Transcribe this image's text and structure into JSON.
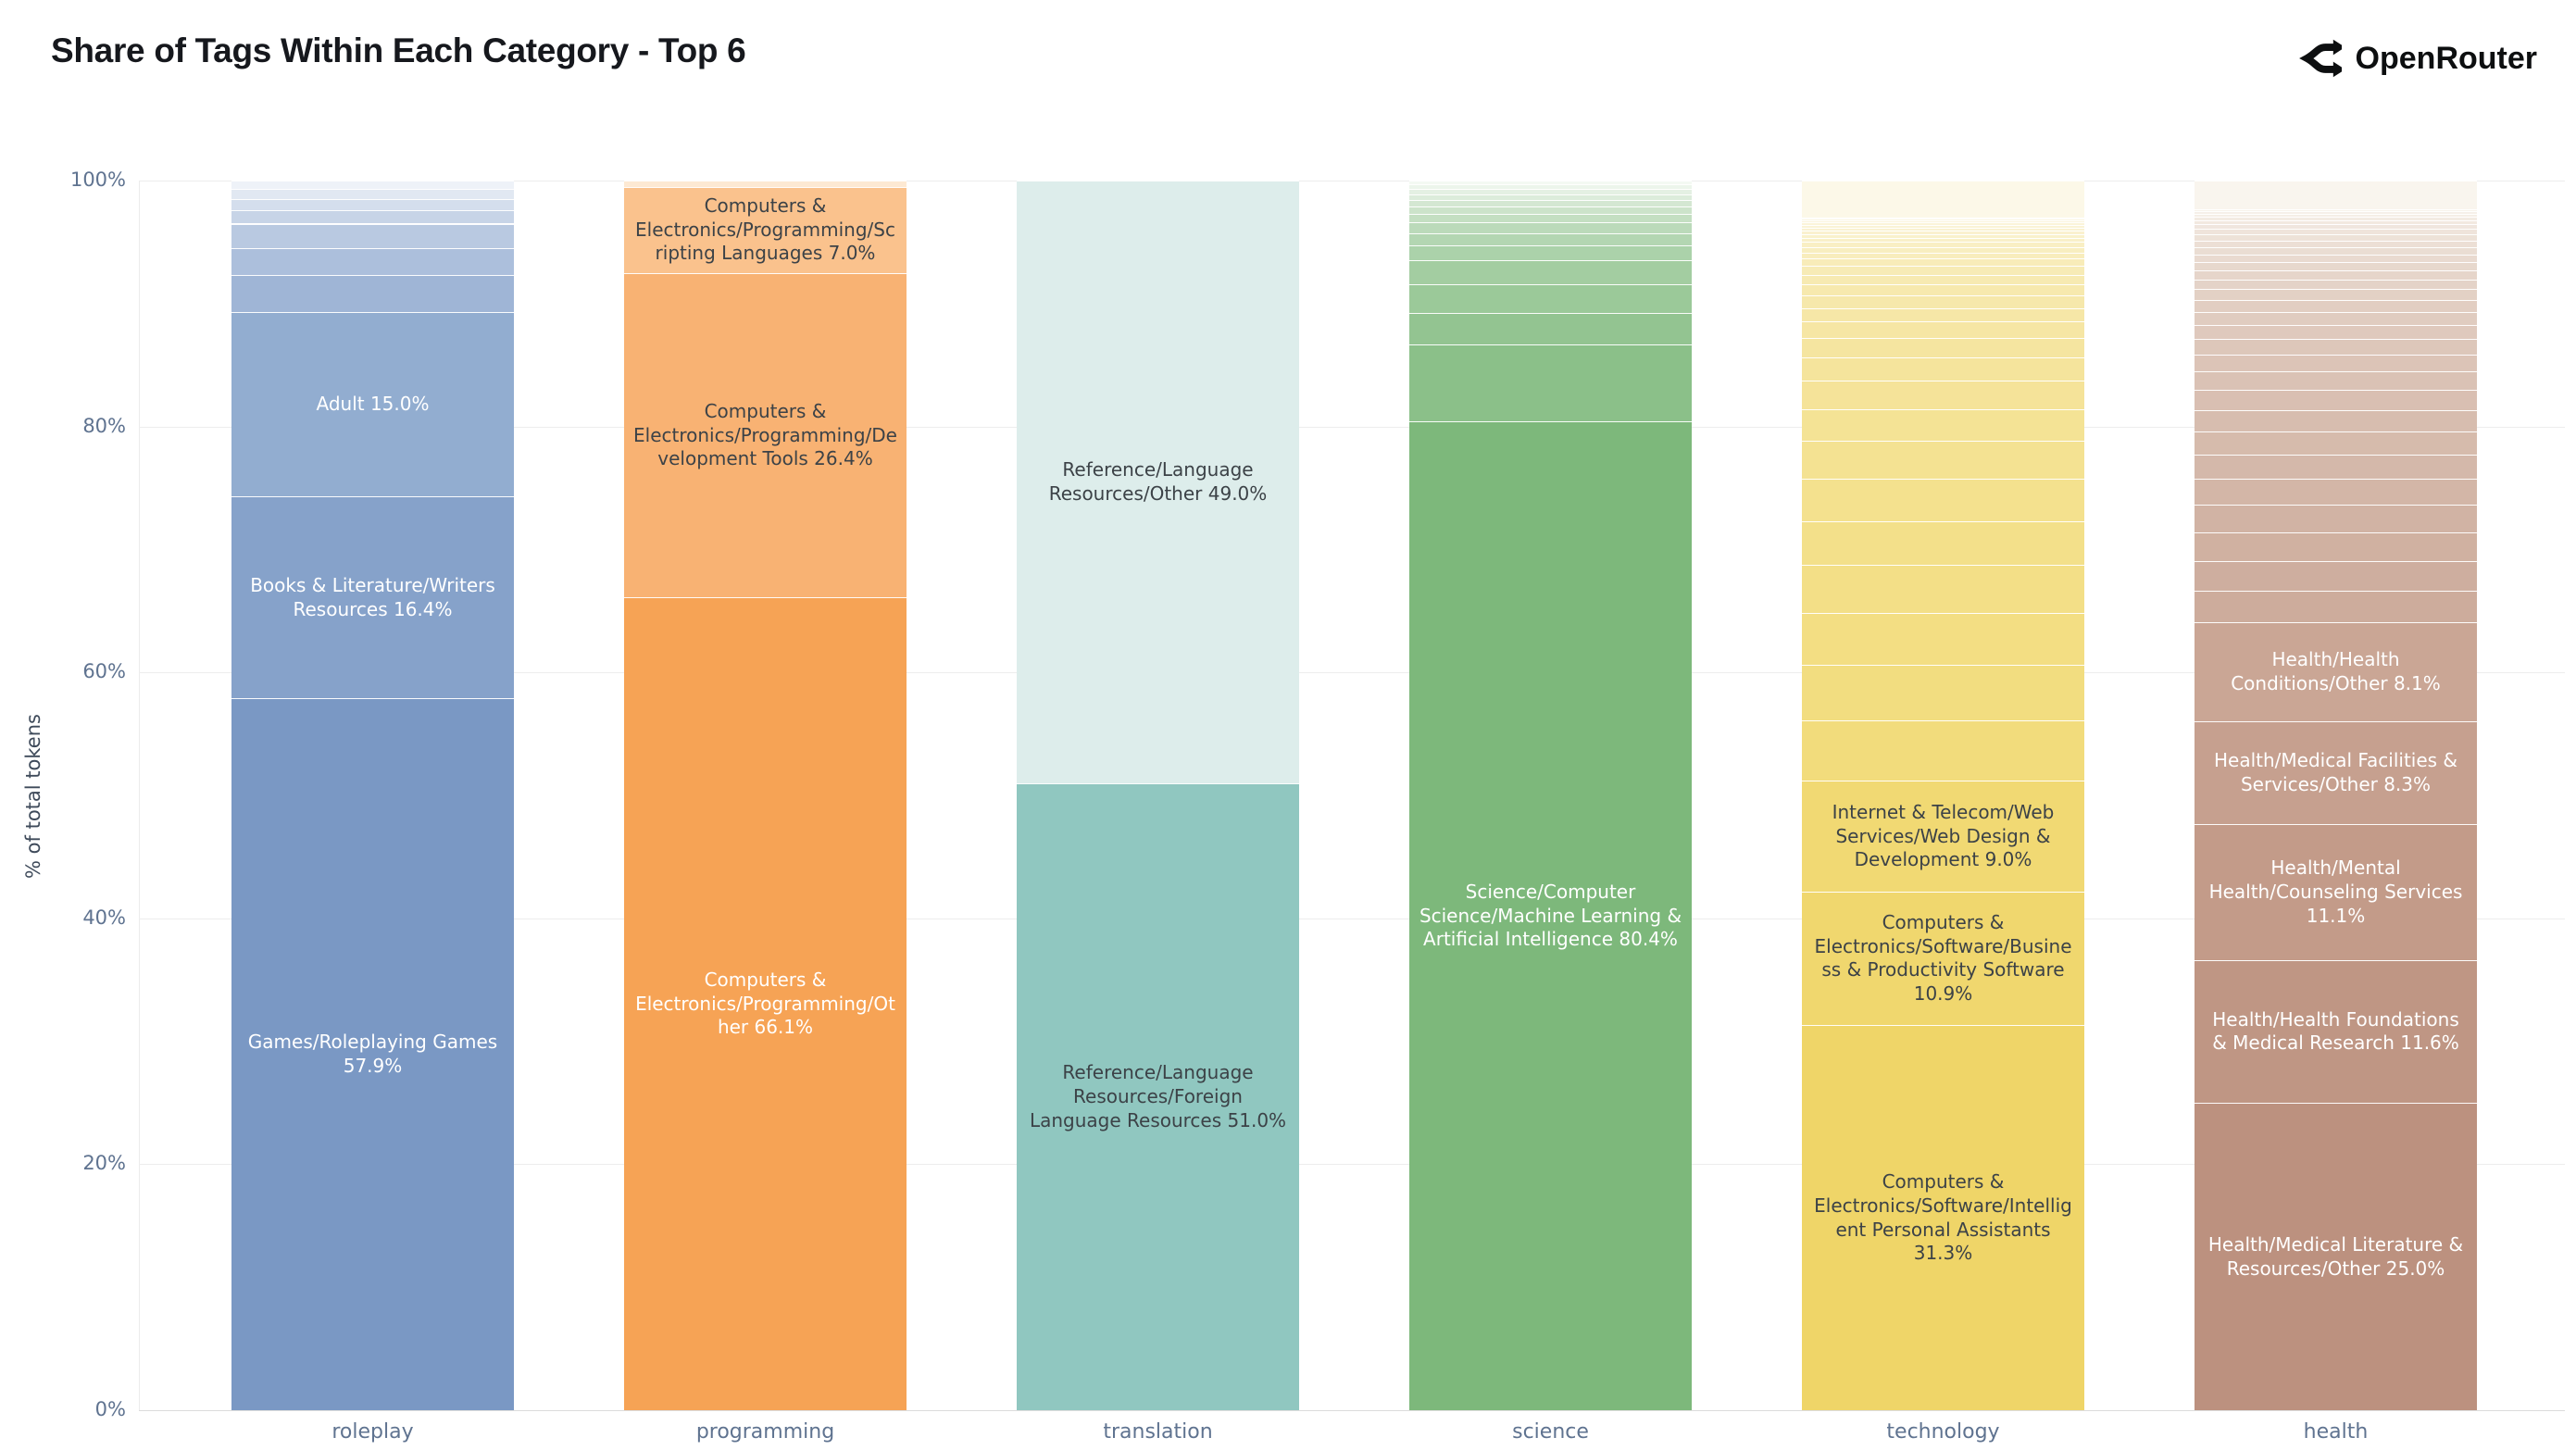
{
  "header": {
    "title": "Share of Tags Within Each Category - Top 6",
    "brand": "OpenRouter",
    "brand_icon": "openrouter-logo-icon",
    "brand_color": "#0d0f10"
  },
  "chart_data": {
    "type": "bar",
    "subtype": "stacked-100-percent",
    "title": "Share of Tags Within Each Category - Top 6",
    "xlabel": "",
    "ylabel": "% of total tokens",
    "ylim": [
      0,
      100
    ],
    "yticks": [
      "0%",
      "20%",
      "40%",
      "60%",
      "80%",
      "100%"
    ],
    "grid": true,
    "legend": "none",
    "label_text_dark": "#3c4247",
    "label_text_light": "#ffffff",
    "categories": [
      "roleplay",
      "programming",
      "translation",
      "science",
      "technology",
      "health"
    ],
    "bars": [
      {
        "category": "roleplay",
        "segments": [
          {
            "label": "Games/Roleplaying Games",
            "pct": 57.9,
            "color": "#7a98c4",
            "text": "light"
          },
          {
            "label": "Books & Literature/Writers Resources",
            "pct": 16.4,
            "color": "#86a2ca",
            "text": "light"
          },
          {
            "label": "Adult",
            "pct": 15.0,
            "color": "#92add0",
            "text": "light"
          }
        ],
        "other_segments": {
          "values": [
            3.0,
            2.2,
            2.0,
            1.1,
            0.9,
            0.8,
            0.7
          ],
          "color_from": "#9fb5d6",
          "color_to": "#eef2f8"
        }
      },
      {
        "category": "programming",
        "segments": [
          {
            "label": "Computers & Electronics/Programming/Other",
            "pct": 66.1,
            "color": "#f6a355",
            "text": "light"
          },
          {
            "label": "Computers & Electronics/Programming/Development Tools",
            "pct": 26.4,
            "color": "#f8b273",
            "text": "dark"
          },
          {
            "label": "Computers & Electronics/Programming/Scripting Languages",
            "pct": 7.0,
            "color": "#fac28d",
            "text": "dark"
          }
        ],
        "other_segments": {
          "values": [
            0.5
          ],
          "color_from": "#fde9d3",
          "color_to": "#fde9d3"
        }
      },
      {
        "category": "translation",
        "segments": [
          {
            "label": "Reference/Language Resources/Foreign Language Resources",
            "pct": 51.0,
            "color": "#90c7c0",
            "text": "dark"
          },
          {
            "label": "Reference/Language Resources/Other",
            "pct": 49.0,
            "color": "#ddedeb",
            "text": "dark"
          }
        ],
        "other_segments": {
          "values": [],
          "color_from": "#ffffff",
          "color_to": "#ffffff"
        }
      },
      {
        "category": "science",
        "segments": [
          {
            "label": "Science/Computer Science/Machine Learning & Artificial Intelligence",
            "pct": 80.4,
            "color": "#7db87b",
            "text": "light"
          }
        ],
        "other_segments": {
          "values": [
            6.3,
            2.5,
            2.4,
            1.9,
            1.2,
            1.0,
            0.9,
            0.7,
            0.6,
            0.5,
            0.5,
            0.4,
            0.4,
            0.3
          ],
          "color_from": "#8bc089",
          "color_to": "#f4f9f3"
        }
      },
      {
        "category": "technology",
        "segments": [
          {
            "label": "Computers & Electronics/Software/Intelligent Personal Assistants",
            "pct": 31.3,
            "color": "#efd568",
            "text": "dark"
          },
          {
            "label": "Computers & Electronics/Software/Business & Productivity Software",
            "pct": 10.9,
            "color": "#f0d76e",
            "text": "dark"
          },
          {
            "label": "Internet & Telecom/Web Services/Web Design & Development",
            "pct": 9.0,
            "color": "#f1d973",
            "text": "dark"
          }
        ],
        "other_segments": {
          "values": [
            4.9,
            4.5,
            4.2,
            3.9,
            3.6,
            3.4,
            3.1,
            2.6,
            2.3,
            1.9,
            1.6,
            1.3,
            1.1,
            1.0,
            0.9,
            0.8,
            0.7,
            0.6,
            0.5,
            0.45,
            0.4,
            0.35,
            0.3,
            0.3,
            0.25,
            0.2,
            0.2,
            0.15,
            0.15,
            0.1,
            3.0
          ],
          "color_from": "#f2dc7c",
          "color_to": "#fcf8e8"
        }
      },
      {
        "category": "health",
        "segments": [
          {
            "label": "Health/Medical Literature & Resources/Other",
            "pct": 25.0,
            "color": "#bc917f",
            "text": "light"
          },
          {
            "label": "Health/Health Foundations & Medical Research",
            "pct": 11.6,
            "color": "#bf9684",
            "text": "light"
          },
          {
            "label": "Health/Mental Health/Counseling Services",
            "pct": 11.1,
            "color": "#c39b89",
            "text": "light"
          },
          {
            "label": "Health/Medical Facilities & Services/Other",
            "pct": 8.3,
            "color": "#c6a08f",
            "text": "light"
          },
          {
            "label": "Health/Health Conditions/Other",
            "pct": 8.1,
            "color": "#caa695",
            "text": "light"
          }
        ],
        "other_segments": {
          "values": [
            2.6,
            2.5,
            2.4,
            2.3,
            2.2,
            2.0,
            1.9,
            1.8,
            1.7,
            1.5,
            1.4,
            1.3,
            1.2,
            1.1,
            1.0,
            0.9,
            0.8,
            0.75,
            0.7,
            0.65,
            0.6,
            0.55,
            0.5,
            0.45,
            0.4,
            0.35,
            0.3,
            0.25,
            0.2,
            0.15,
            2.4
          ],
          "color_from": "#cdac9c",
          "color_to": "#f9f5ee"
        }
      }
    ]
  }
}
